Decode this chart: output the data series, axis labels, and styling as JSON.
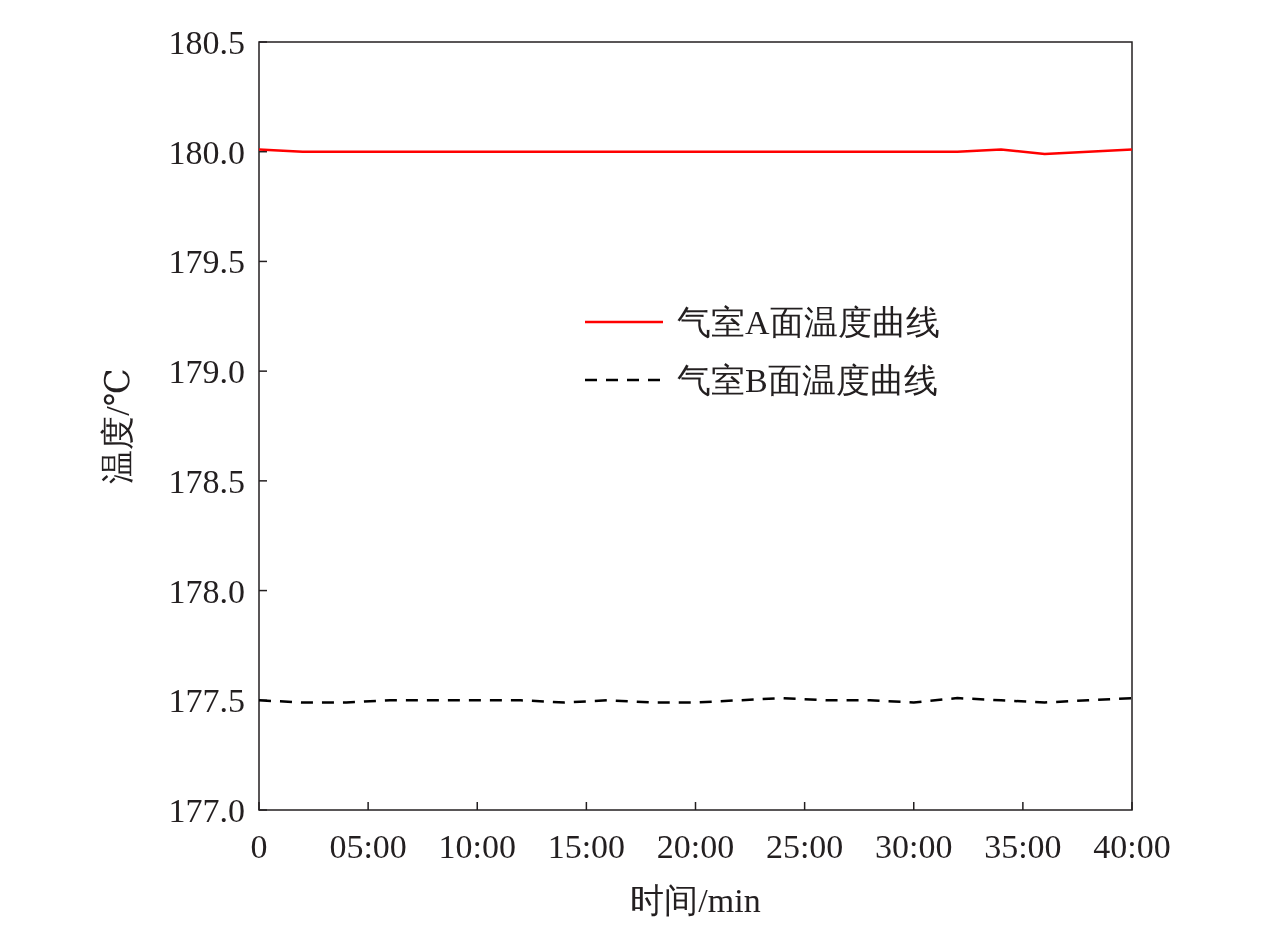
{
  "chart_data": {
    "type": "line",
    "xlabel": "时间/min",
    "ylabel": "温度/℃",
    "x": [
      0,
      2,
      4,
      6,
      8,
      10,
      12,
      14,
      16,
      18,
      20,
      22,
      24,
      26,
      28,
      30,
      32,
      34,
      36,
      38,
      40
    ],
    "xlim": [
      0,
      40
    ],
    "ylim": [
      177,
      180.5
    ],
    "xticks": [
      {
        "value": 0,
        "label": "0"
      },
      {
        "value": 5,
        "label": "05:00"
      },
      {
        "value": 10,
        "label": "10:00"
      },
      {
        "value": 15,
        "label": "15:00"
      },
      {
        "value": 20,
        "label": "20:00"
      },
      {
        "value": 25,
        "label": "25:00"
      },
      {
        "value": 30,
        "label": "30:00"
      },
      {
        "value": 35,
        "label": "35:00"
      },
      {
        "value": 40,
        "label": "40:00"
      }
    ],
    "yticks": [
      {
        "value": 177,
        "label": "177.0"
      },
      177.5,
      {
        "value": 178,
        "label": "178.0"
      },
      178.5,
      {
        "value": 179,
        "label": "179.0"
      },
      179.5,
      {
        "value": 180,
        "label": "180.0"
      },
      180.5
    ],
    "legend": "center",
    "series": [
      {
        "name": "气室A面温度曲线",
        "color": "#ff0000",
        "line_style": "solid",
        "values": [
          180.01,
          180.0,
          180.0,
          180.0,
          180.0,
          180.0,
          180.0,
          180.0,
          180.0,
          180.0,
          180.0,
          180.0,
          180.0,
          180.0,
          180.0,
          180.0,
          180.0,
          180.01,
          179.99,
          180.0,
          180.01
        ]
      },
      {
        "name": "气室B面温度曲线",
        "color": "#000000",
        "line_style": "dashed",
        "values": [
          177.5,
          177.49,
          177.49,
          177.5,
          177.5,
          177.5,
          177.5,
          177.49,
          177.5,
          177.49,
          177.49,
          177.5,
          177.51,
          177.5,
          177.5,
          177.49,
          177.51,
          177.5,
          177.49,
          177.5,
          177.51
        ]
      }
    ]
  }
}
